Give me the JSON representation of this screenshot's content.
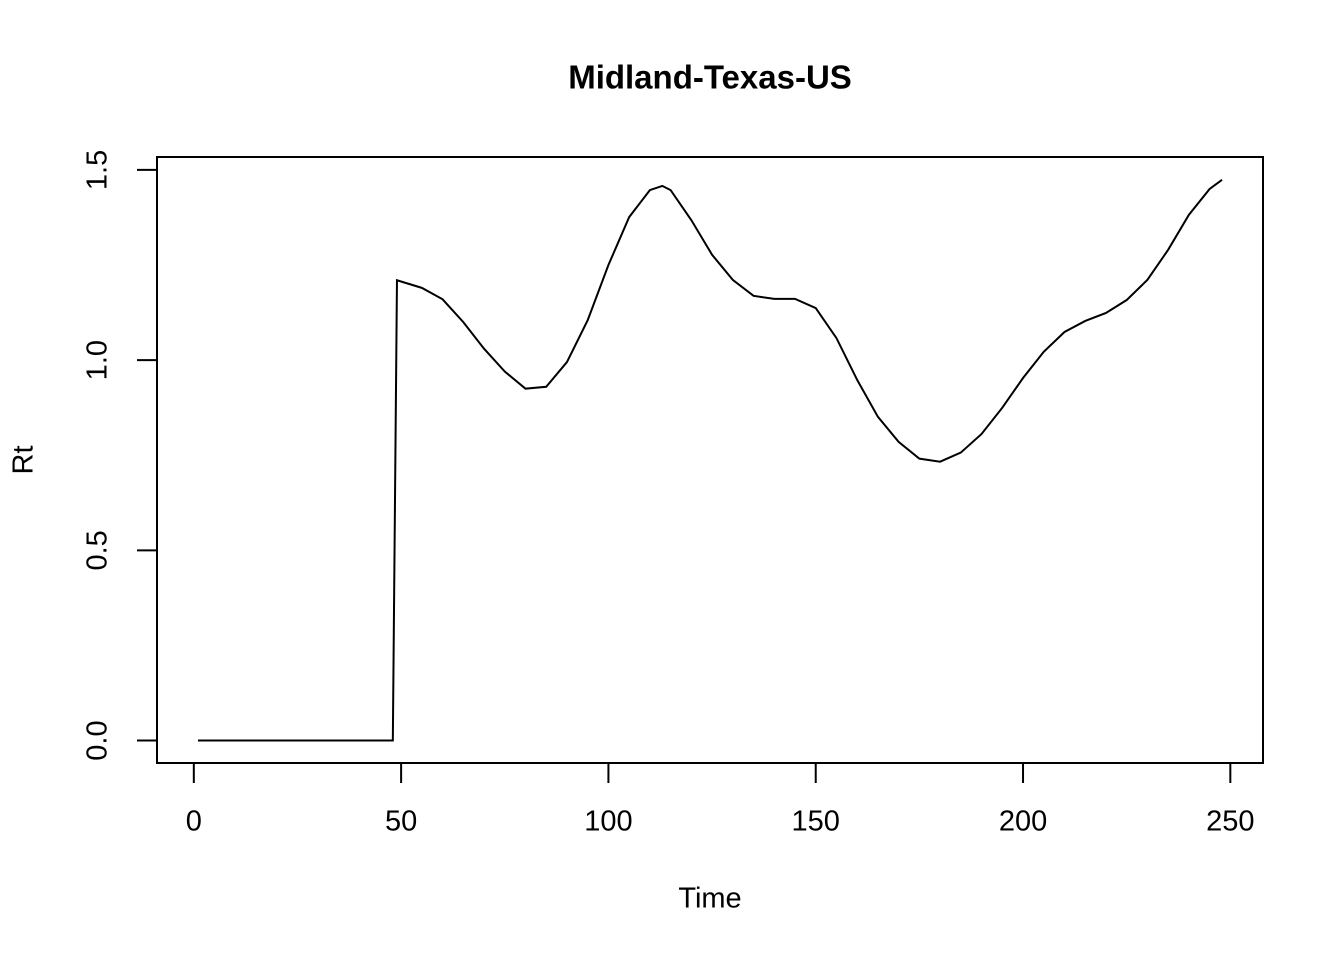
{
  "chart_data": {
    "type": "line",
    "title": "Midland-Texas-US",
    "xlabel": "Time",
    "ylabel": "Rt",
    "x": [
      1,
      48,
      49,
      55,
      60,
      65,
      70,
      75,
      80,
      85,
      90,
      95,
      100,
      105,
      110,
      113,
      115,
      120,
      125,
      130,
      135,
      140,
      145,
      150,
      155,
      160,
      165,
      170,
      175,
      180,
      185,
      190,
      195,
      200,
      205,
      210,
      215,
      220,
      225,
      230,
      235,
      240,
      245,
      248
    ],
    "series": [
      {
        "name": "Rt",
        "color": "#000000",
        "values": [
          0,
          0,
          1.21,
          1.19,
          1.16,
          1.1,
          1.03,
          0.97,
          0.925,
          0.93,
          0.995,
          1.105,
          1.25,
          1.376,
          1.447,
          1.458,
          1.447,
          1.368,
          1.277,
          1.211,
          1.169,
          1.161,
          1.161,
          1.137,
          1.058,
          0.948,
          0.851,
          0.785,
          0.741,
          0.733,
          0.757,
          0.806,
          0.875,
          0.953,
          1.022,
          1.074,
          1.103,
          1.124,
          1.158,
          1.211,
          1.29,
          1.382,
          1.45,
          1.474
        ]
      }
    ],
    "xlim": [
      -8.88,
      257.88
    ],
    "xticks": [
      0,
      50,
      100,
      150,
      200,
      250
    ],
    "ylim": [
      -0.059,
      1.534
    ],
    "yticks": [
      {
        "value": 0,
        "label": "0.0"
      },
      {
        "value": 0.5,
        "label": "0.5"
      },
      {
        "value": 1,
        "label": "1.0"
      },
      {
        "value": 1.5,
        "label": "1.5"
      }
    ],
    "grid": false
  }
}
